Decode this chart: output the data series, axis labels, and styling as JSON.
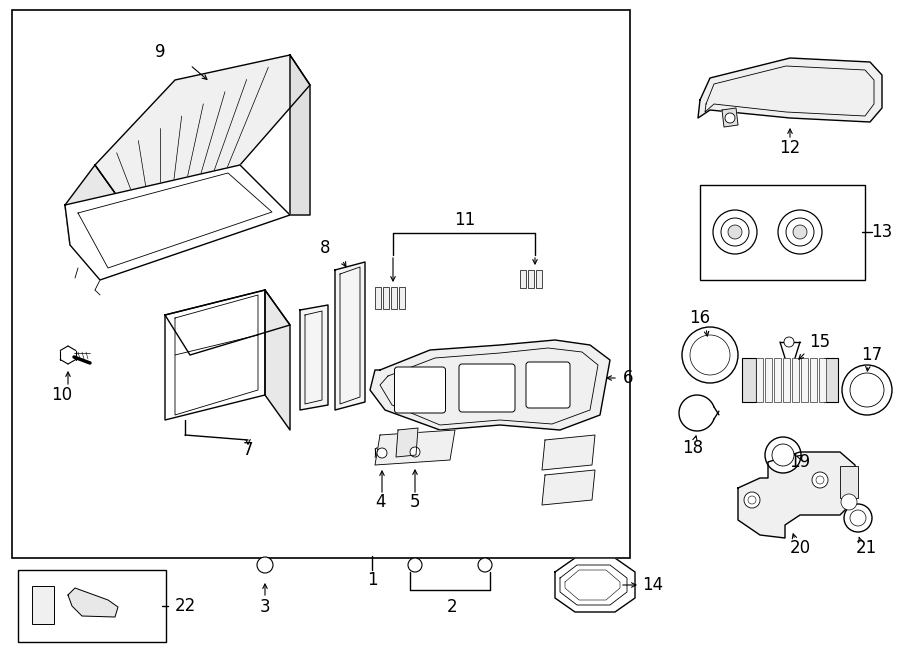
{
  "bg_color": "#ffffff",
  "line_color": "#000000",
  "text_color": "#000000",
  "fig_width": 9.0,
  "fig_height": 6.61
}
